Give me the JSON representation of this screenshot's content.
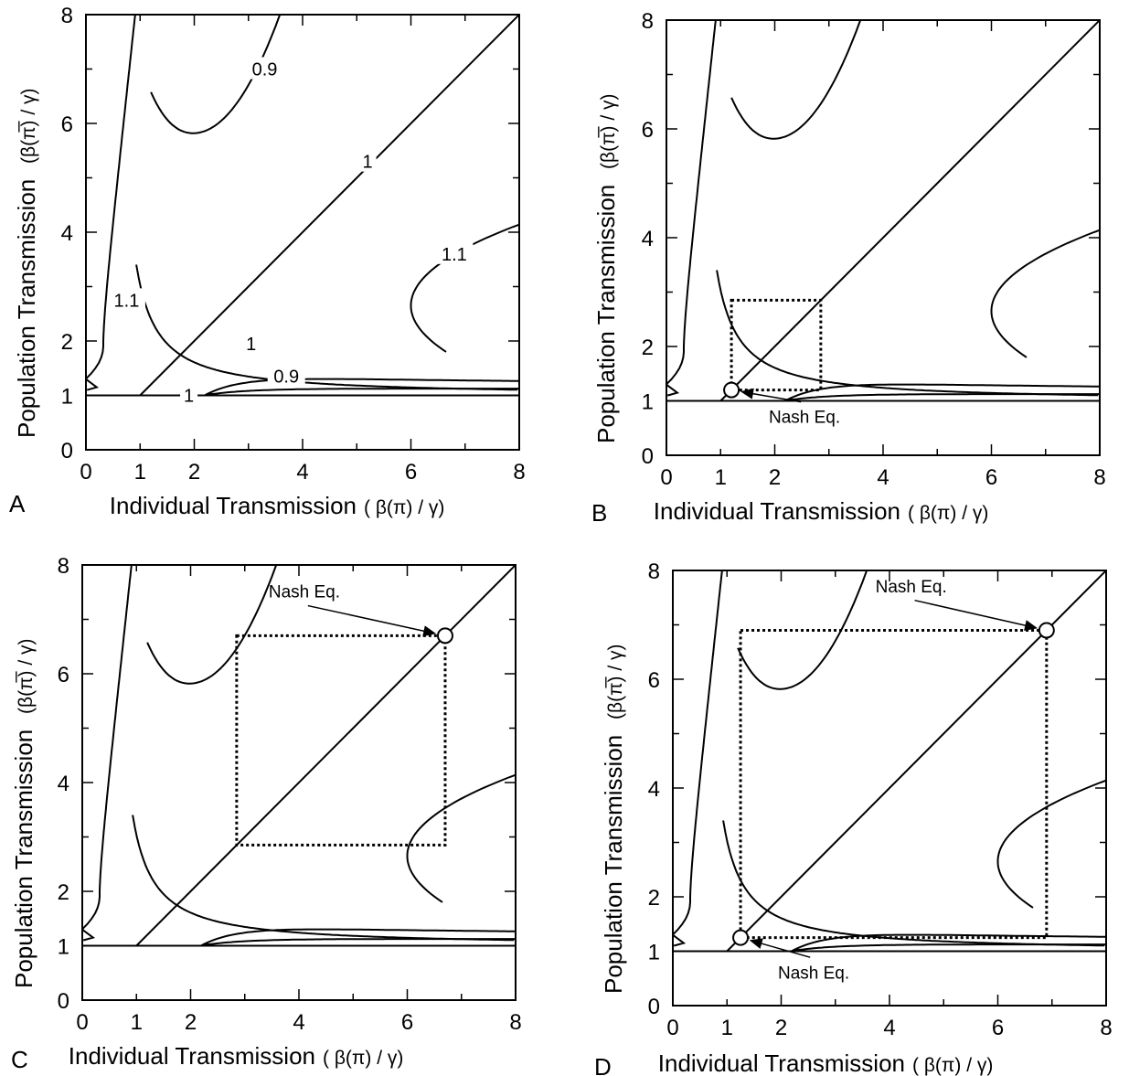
{
  "chart_data": [
    {
      "panel": "A",
      "type": "line",
      "xlabel_text": "Individual Transmission",
      "xlabel_math": "( β(π) / γ)",
      "ylabel_text": "Population Transmission",
      "ylabel_math": "(β(π̅) / γ)",
      "xlim": [
        0,
        8
      ],
      "ylim": [
        0,
        8
      ],
      "xticks": [
        "0",
        "1",
        "2",
        "4",
        "6",
        "8"
      ],
      "yticks": [
        "0",
        "1",
        "2",
        "4",
        "6",
        "8"
      ],
      "contour_labels": [
        {
          "text": "0.9",
          "x": 3.3,
          "y": 7.0
        },
        {
          "text": "1",
          "x": 5.2,
          "y": 5.3
        },
        {
          "text": "1.1",
          "x": 6.8,
          "y": 3.6
        },
        {
          "text": "1.1",
          "x": 0.75,
          "y": 2.75
        },
        {
          "text": "1",
          "x": 3.05,
          "y": 1.95
        },
        {
          "text": "0.9",
          "x": 3.7,
          "y": 1.35
        },
        {
          "text": "1",
          "x": 1.9,
          "y": 1.0
        }
      ],
      "annotations": []
    },
    {
      "panel": "B",
      "type": "line",
      "xlabel_text": "Individual Transmission",
      "xlabel_math": "( β(π) / γ)",
      "ylabel_text": "Population Transmission",
      "ylabel_math": "(β(π̅) / γ)",
      "xlim": [
        0,
        8
      ],
      "ylim": [
        0,
        8
      ],
      "xticks": [
        "0",
        "1",
        "2",
        "4",
        "6",
        "8"
      ],
      "yticks": [
        "0",
        "1",
        "2",
        "4",
        "6",
        "8"
      ],
      "contour_labels": [],
      "dotted_box": {
        "x1": 1.2,
        "x2": 2.85,
        "y1": 1.2,
        "y2": 2.85
      },
      "annotations": [
        {
          "text": "Nash Eq.",
          "x": 1.2,
          "y": 1.2,
          "text_x": 2.55,
          "text_y": 0.6
        }
      ]
    },
    {
      "panel": "C",
      "type": "line",
      "xlabel_text": "Individual Transmission",
      "xlabel_math": "( β(π) / γ)",
      "ylabel_text": "Population Transmission",
      "ylabel_math": "(β(π̅) / γ)",
      "xlim": [
        0,
        8
      ],
      "ylim": [
        0,
        8
      ],
      "xticks": [
        "0",
        "1",
        "2",
        "4",
        "6",
        "8"
      ],
      "yticks": [
        "0",
        "1",
        "2",
        "4",
        "6",
        "8"
      ],
      "contour_labels": [],
      "dotted_box": {
        "x1": 2.85,
        "x2": 6.7,
        "y1": 2.85,
        "y2": 6.7
      },
      "annotations": [
        {
          "text": "Nash Eq.",
          "x": 6.7,
          "y": 6.7,
          "text_x": 4.1,
          "text_y": 7.4
        }
      ]
    },
    {
      "panel": "D",
      "type": "line",
      "xlabel_text": "Individual Transmission",
      "xlabel_math": "( β(π) / γ)",
      "ylabel_text": "Population Transmission",
      "ylabel_math": "(β(π̅) / γ)",
      "xlim": [
        0,
        8
      ],
      "ylim": [
        0,
        8
      ],
      "xticks": [
        "0",
        "1",
        "2",
        "4",
        "6",
        "8"
      ],
      "yticks": [
        "0",
        "1",
        "2",
        "4",
        "6",
        "8"
      ],
      "contour_labels": [],
      "dotted_box": {
        "x1": 1.25,
        "x2": 6.9,
        "y1": 1.25,
        "y2": 6.9
      },
      "annotations": [
        {
          "text": "Nash Eq.",
          "x": 1.25,
          "y": 1.25,
          "text_x": 2.6,
          "text_y": 0.5
        },
        {
          "text": "Nash Eq.",
          "x": 6.9,
          "y": 6.9,
          "text_x": 4.4,
          "text_y": 7.6
        }
      ]
    }
  ]
}
